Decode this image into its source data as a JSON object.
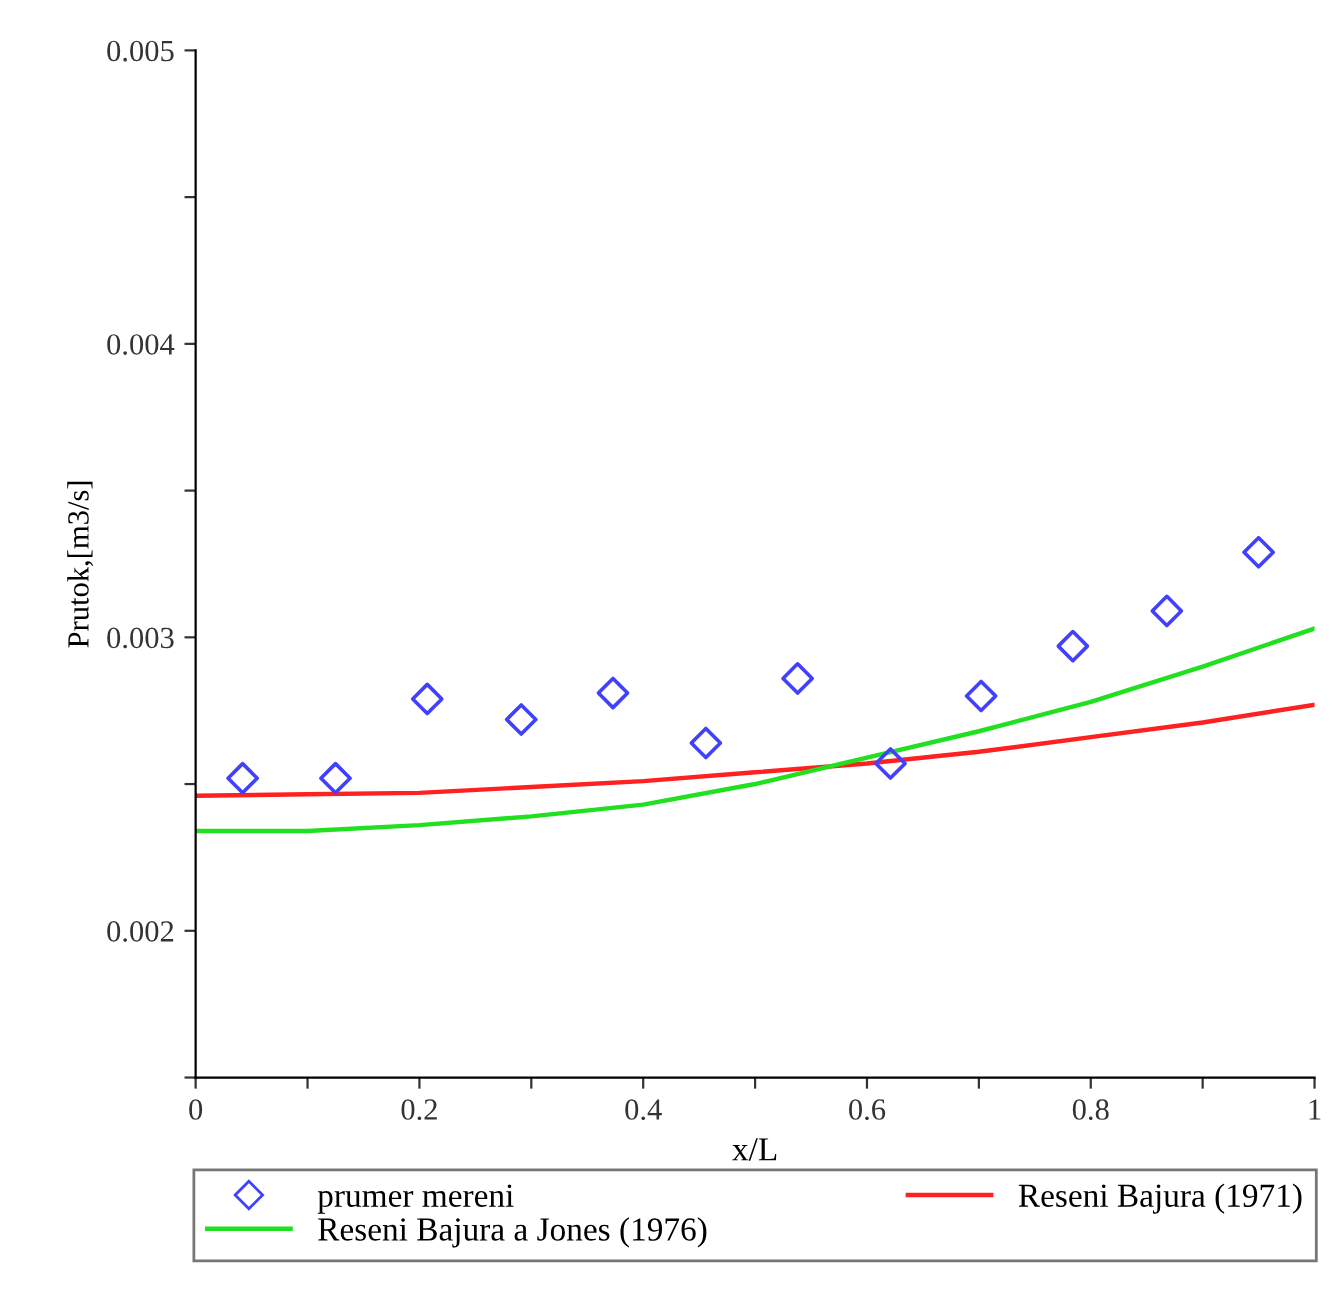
{
  "chart_data": {
    "type": "line",
    "xlabel": "x/L",
    "ylabel": "Prutok,[m3/s]",
    "xlim": [
      0,
      1
    ],
    "ylim": [
      0.0015,
      0.005
    ],
    "xticks": [
      0,
      {
        "value": 0.1,
        "label": null
      },
      0.2,
      {
        "value": 0.3,
        "label": null
      },
      0.4,
      {
        "value": 0.5,
        "label": null
      },
      0.6,
      {
        "value": 0.7,
        "label": null
      },
      0.8,
      {
        "value": 0.9,
        "label": null
      },
      1
    ],
    "yticks": [
      {
        "value": 0.0015,
        "label": null
      },
      0.002,
      {
        "value": 0.0025,
        "label": null
      },
      0.003,
      {
        "value": 0.0035,
        "label": null
      },
      0.004,
      {
        "value": 0.0045,
        "label": null
      },
      0.005
    ],
    "grid": false,
    "legend": "bottom",
    "series": [
      {
        "name": "prumer mereni",
        "type": "scatter",
        "marker": "diamond",
        "color": "#4040ff",
        "x": [
          0.042,
          0.125,
          0.207,
          0.291,
          0.373,
          0.456,
          0.538,
          0.621,
          0.702,
          0.784,
          0.868,
          0.95
        ],
        "values": [
          0.00252,
          0.00252,
          0.00279,
          0.00272,
          0.00281,
          0.00264,
          0.00286,
          0.00257,
          0.0028,
          0.00297,
          0.00309,
          0.00329
        ]
      },
      {
        "name": "Reseni Bajura (1971)",
        "color": "#ff2020",
        "x": [
          0,
          0.1,
          0.2,
          0.3,
          0.4,
          0.5,
          0.6,
          0.7,
          0.8,
          0.9,
          1
        ],
        "values": [
          0.00246,
          0.002465,
          0.00247,
          0.00249,
          0.00251,
          0.00254,
          0.00257,
          0.00261,
          0.00266,
          0.00271,
          0.00277
        ]
      },
      {
        "name": "Reseni Bajura a Jones (1976)",
        "color": "#20e020",
        "x": [
          0,
          0.1,
          0.2,
          0.3,
          0.4,
          0.5,
          0.6,
          0.7,
          0.8,
          0.9,
          1
        ],
        "values": [
          0.00234,
          0.00234,
          0.00236,
          0.00239,
          0.00243,
          0.0025,
          0.00259,
          0.00268,
          0.00278,
          0.0029,
          0.00303
        ]
      }
    ]
  }
}
